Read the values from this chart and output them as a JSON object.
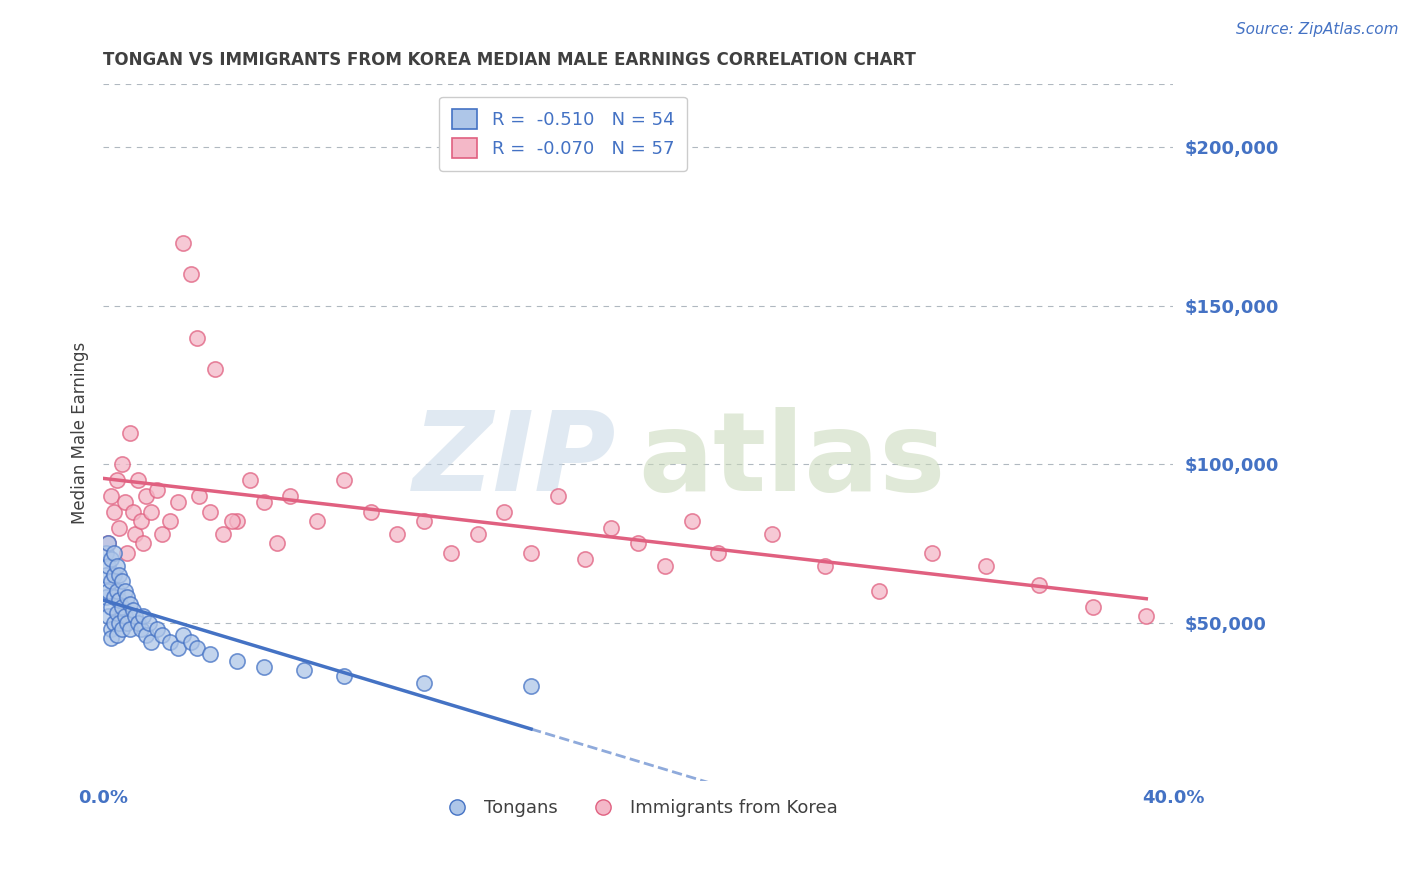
{
  "title": "TONGAN VS IMMIGRANTS FROM KOREA MEDIAN MALE EARNINGS CORRELATION CHART",
  "source": "Source: ZipAtlas.com",
  "ylabel": "Median Male Earnings",
  "series1_name": "Tongans",
  "series2_name": "Immigrants from Korea",
  "xlim": [
    0.0,
    0.4
  ],
  "ylim": [
    0,
    220000
  ],
  "yticks": [
    0,
    50000,
    100000,
    150000,
    200000
  ],
  "ytick_labels": [
    "",
    "$50,000",
    "$100,000",
    "$150,000",
    "$200,000"
  ],
  "blue_color": "#4472c4",
  "blue_fill": "#aec6e8",
  "pink_color": "#e06080",
  "pink_fill": "#f4b8c8",
  "title_color": "#404040",
  "axis_label_color": "#404040",
  "tick_color": "#4472c4",
  "grid_color": "#b0b8c0",
  "source_color": "#4472c4",
  "legend_r1": "R =  -0.510   N = 54",
  "legend_r2": "R =  -0.070   N = 57",
  "tongans_x": [
    0.001,
    0.001,
    0.001,
    0.002,
    0.002,
    0.002,
    0.002,
    0.003,
    0.003,
    0.003,
    0.003,
    0.003,
    0.004,
    0.004,
    0.004,
    0.004,
    0.005,
    0.005,
    0.005,
    0.005,
    0.006,
    0.006,
    0.006,
    0.007,
    0.007,
    0.007,
    0.008,
    0.008,
    0.009,
    0.009,
    0.01,
    0.01,
    0.011,
    0.012,
    0.013,
    0.014,
    0.015,
    0.016,
    0.017,
    0.018,
    0.02,
    0.022,
    0.025,
    0.028,
    0.03,
    0.033,
    0.035,
    0.04,
    0.05,
    0.06,
    0.075,
    0.09,
    0.12,
    0.16
  ],
  "tongans_y": [
    72000,
    65000,
    58000,
    75000,
    68000,
    60000,
    52000,
    70000,
    63000,
    55000,
    48000,
    45000,
    72000,
    65000,
    58000,
    50000,
    68000,
    60000,
    53000,
    46000,
    65000,
    57000,
    50000,
    63000,
    55000,
    48000,
    60000,
    52000,
    58000,
    50000,
    56000,
    48000,
    54000,
    52000,
    50000,
    48000,
    52000,
    46000,
    50000,
    44000,
    48000,
    46000,
    44000,
    42000,
    46000,
    44000,
    42000,
    40000,
    38000,
    36000,
    35000,
    33000,
    31000,
    30000
  ],
  "korea_x": [
    0.002,
    0.003,
    0.004,
    0.005,
    0.006,
    0.007,
    0.008,
    0.009,
    0.01,
    0.011,
    0.012,
    0.013,
    0.014,
    0.015,
    0.016,
    0.018,
    0.02,
    0.022,
    0.025,
    0.028,
    0.03,
    0.033,
    0.036,
    0.04,
    0.045,
    0.05,
    0.055,
    0.06,
    0.065,
    0.07,
    0.08,
    0.09,
    0.1,
    0.11,
    0.12,
    0.13,
    0.14,
    0.15,
    0.16,
    0.17,
    0.18,
    0.19,
    0.2,
    0.21,
    0.22,
    0.23,
    0.25,
    0.27,
    0.29,
    0.31,
    0.33,
    0.35,
    0.37,
    0.39,
    0.035,
    0.042,
    0.048
  ],
  "korea_y": [
    75000,
    90000,
    85000,
    95000,
    80000,
    100000,
    88000,
    72000,
    110000,
    85000,
    78000,
    95000,
    82000,
    75000,
    90000,
    85000,
    92000,
    78000,
    82000,
    88000,
    170000,
    160000,
    90000,
    85000,
    78000,
    82000,
    95000,
    88000,
    75000,
    90000,
    82000,
    95000,
    85000,
    78000,
    82000,
    72000,
    78000,
    85000,
    72000,
    90000,
    70000,
    80000,
    75000,
    68000,
    82000,
    72000,
    78000,
    68000,
    60000,
    72000,
    68000,
    62000,
    55000,
    52000,
    140000,
    130000,
    82000
  ]
}
